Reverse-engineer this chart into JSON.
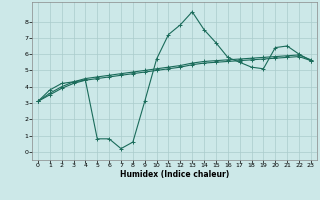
{
  "background_color": "#cce8e8",
  "grid_color": "#aacccc",
  "line_color": "#1a6b5a",
  "xlabel": "Humidex (Indice chaleur)",
  "xlim": [
    -0.5,
    23.5
  ],
  "ylim": [
    -0.5,
    9.2
  ],
  "xticks": [
    0,
    1,
    2,
    3,
    4,
    5,
    6,
    7,
    8,
    9,
    10,
    11,
    12,
    13,
    14,
    15,
    16,
    17,
    18,
    19,
    20,
    21,
    22,
    23
  ],
  "yticks": [
    0,
    1,
    2,
    3,
    4,
    5,
    6,
    7,
    8
  ],
  "line1_x": [
    0,
    1,
    2,
    3,
    4,
    5,
    6,
    7,
    8,
    9,
    10,
    11,
    12,
    13,
    14,
    15,
    16,
    17,
    18,
    19,
    20,
    21,
    22,
    23
  ],
  "line1_y": [
    3.1,
    3.8,
    4.2,
    4.3,
    4.4,
    0.8,
    0.8,
    0.2,
    0.6,
    3.1,
    5.7,
    7.2,
    7.8,
    8.6,
    7.5,
    6.7,
    5.8,
    5.5,
    5.2,
    5.1,
    6.4,
    6.5,
    6.0,
    5.6
  ],
  "line2_x": [
    0,
    1,
    2,
    3,
    4,
    5,
    6,
    7,
    8,
    9,
    10,
    11,
    12,
    13,
    14,
    15,
    16,
    17,
    18,
    19,
    20,
    21,
    22,
    23
  ],
  "line2_y": [
    3.1,
    3.5,
    3.9,
    4.2,
    4.4,
    4.5,
    4.6,
    4.7,
    4.8,
    4.9,
    5.0,
    5.1,
    5.2,
    5.35,
    5.45,
    5.5,
    5.55,
    5.6,
    5.65,
    5.7,
    5.75,
    5.8,
    5.85,
    5.6
  ],
  "line3_x": [
    0,
    1,
    2,
    3,
    4,
    5,
    6,
    7,
    8,
    9,
    10,
    11,
    12,
    13,
    14,
    15,
    16,
    17,
    18,
    19,
    20,
    21,
    22,
    23
  ],
  "line3_y": [
    3.1,
    3.6,
    4.0,
    4.3,
    4.5,
    4.6,
    4.7,
    4.8,
    4.9,
    5.0,
    5.1,
    5.2,
    5.3,
    5.45,
    5.55,
    5.6,
    5.65,
    5.7,
    5.75,
    5.8,
    5.85,
    5.9,
    5.95,
    5.65
  ]
}
